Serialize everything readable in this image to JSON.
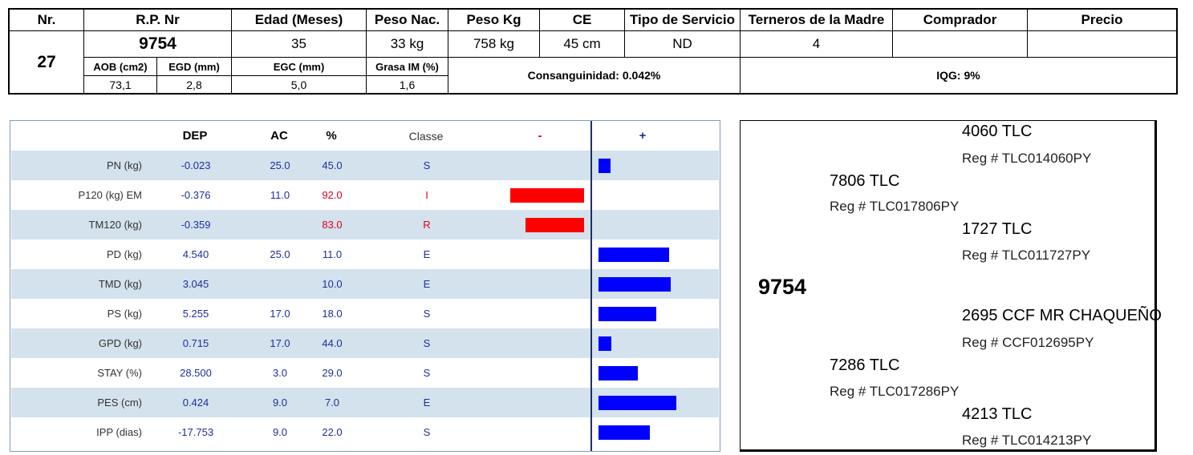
{
  "header": {
    "columns": {
      "nr": "Nr.",
      "rp_nr": "R.P. Nr",
      "edad": "Edad (Meses)",
      "peso_nac": "Peso Nac.",
      "peso_kg": "Peso Kg",
      "ce": "CE",
      "tipo_servicio": "Tipo de Servicio",
      "terneros": "Terneros de la Madre",
      "comprador": "Comprador",
      "precio": "Precio"
    },
    "values": {
      "nr": "27",
      "rp_nr": "9754",
      "edad": "35",
      "peso_nac": "33 kg",
      "peso_kg": "758 kg",
      "ce": "45 cm",
      "tipo_servicio": "ND",
      "terneros": "4",
      "comprador": "",
      "precio": ""
    },
    "carcass_labels": {
      "aob": "AOB (cm2)",
      "egd": "EGD (mm)",
      "egc": "EGC (mm)",
      "grasa": "Grasa IM (%)"
    },
    "carcass_values": {
      "aob": "73,1",
      "egd": "2,8",
      "egc": "5,0",
      "grasa": "1,6"
    },
    "consanguinidad": "Consanguinidad: 0.042%",
    "iqg": "IQG: 9%"
  },
  "epd": {
    "headers": {
      "dep": "DEP",
      "ac": "AC",
      "pct": "%",
      "classe": "Classe",
      "minus": "-",
      "plus": "+"
    },
    "colors": {
      "minus_bar": "#ff0000",
      "plus_bar": "#0000ff",
      "row_shade": "#d3e2ec",
      "value_text": "#1f2f9a",
      "alert_text": "#e0001a"
    },
    "rows": [
      {
        "trait": "PN (kg)",
        "dep": "-0.023",
        "ac": "25.0",
        "pct": "45.0",
        "classe": "S",
        "bar": 0.15,
        "alert": false
      },
      {
        "trait": "P120 (kg) EM",
        "dep": "-0.376",
        "ac": "11.0",
        "pct": "92.0",
        "classe": "I",
        "bar": -1.0,
        "alert": true
      },
      {
        "trait": "TM120 (kg)",
        "dep": "-0.359",
        "ac": "",
        "pct": "83.0",
        "classe": "R",
        "bar": -0.79,
        "alert": true
      },
      {
        "trait": "PD (kg)",
        "dep": "4.540",
        "ac": "25.0",
        "pct": "11.0",
        "classe": "E",
        "bar": 0.91,
        "alert": false
      },
      {
        "trait": "TMD (kg)",
        "dep": "3.045",
        "ac": "",
        "pct": "10.0",
        "classe": "E",
        "bar": 0.93,
        "alert": false
      },
      {
        "trait": "PS (kg)",
        "dep": "5.255",
        "ac": "17.0",
        "pct": "18.0",
        "classe": "S",
        "bar": 0.74,
        "alert": false
      },
      {
        "trait": "GPD (kg)",
        "dep": "0.715",
        "ac": "17.0",
        "pct": "44.0",
        "classe": "S",
        "bar": 0.17,
        "alert": false
      },
      {
        "trait": "STAY (%)",
        "dep": "28.500",
        "ac": "3.0",
        "pct": "29.0",
        "classe": "S",
        "bar": 0.5,
        "alert": false
      },
      {
        "trait": "PES (cm)",
        "dep": "0.424",
        "ac": "9.0",
        "pct": "7.0",
        "classe": "E",
        "bar": 1.0,
        "alert": false
      },
      {
        "trait": "IPP (dias)",
        "dep": "-17.753",
        "ac": "9.0",
        "pct": "22.0",
        "classe": "S",
        "bar": 0.66,
        "alert": false
      }
    ]
  },
  "pedigree": {
    "animal": "9754",
    "sire": {
      "name": "7806 TLC",
      "reg": "Reg # TLC017806PY"
    },
    "sire_sire": {
      "name": "4060 TLC",
      "reg": "Reg # TLC014060PY"
    },
    "sire_dam": {
      "name": "1727 TLC",
      "reg": "Reg # TLC011727PY"
    },
    "dam": {
      "name": "7286 TLC",
      "reg": "Reg # TLC017286PY"
    },
    "dam_sire": {
      "name": "2695 CCF MR CHAQUEÑO",
      "reg": "Reg # CCF012695PY"
    },
    "dam_dam": {
      "name": "4213 TLC",
      "reg": "Reg # TLC014213PY"
    }
  }
}
